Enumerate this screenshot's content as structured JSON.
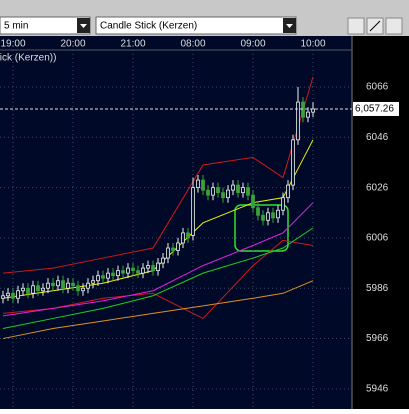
{
  "toolbar": {
    "interval": "5 min",
    "chart_style": "Candle Stick (Kerzen)"
  },
  "chart_data": {
    "type": "candlestick",
    "label": "tick (Kerzen))",
    "categories": [
      null,
      null,
      "19:00",
      null,
      null,
      null,
      null,
      null,
      null,
      null,
      null,
      null,
      null,
      null,
      "20:00",
      null,
      null,
      null,
      null,
      null,
      null,
      null,
      null,
      null,
      null,
      null,
      "21:00",
      null,
      null,
      null,
      null,
      null,
      null,
      null,
      null,
      null,
      null,
      null,
      "08:00",
      null,
      null,
      null,
      null,
      null,
      null,
      null,
      null,
      null,
      null,
      null,
      "09:00",
      null,
      null,
      null,
      null,
      null,
      null,
      null,
      null,
      null,
      null,
      null,
      "10:00"
    ],
    "open": [
      5982,
      5983,
      5984,
      5982,
      5985,
      5986,
      5984,
      5987,
      5985,
      5986,
      5988,
      5987,
      5989,
      5986,
      5988,
      5987,
      5985,
      5986,
      5988,
      5989,
      5991,
      5990,
      5992,
      5991,
      5993,
      5992,
      5994,
      5993,
      5992,
      5994,
      5995,
      5993,
      5996,
      5998,
      6002,
      6001,
      6004,
      6008,
      6007,
      6026,
      6029,
      6025,
      6023,
      6026,
      6024,
      6022,
      6025,
      6027,
      6024,
      6026,
      6023,
      6018,
      6015,
      6013,
      6016,
      6014,
      6017,
      6022,
      6027,
      6045,
      6060,
      6054,
      6056
    ],
    "high": [
      5985,
      5986,
      5986,
      5987,
      5988,
      5988,
      5989,
      5989,
      5988,
      5990,
      5990,
      5991,
      5991,
      5990,
      5990,
      5989,
      5988,
      5990,
      5991,
      5993,
      5993,
      5994,
      5994,
      5995,
      5995,
      5996,
      5996,
      5995,
      5996,
      5997,
      5997,
      5998,
      6000,
      6004,
      6004,
      6006,
      6010,
      6010,
      6030,
      6031,
      6031,
      6027,
      6028,
      6028,
      6026,
      6027,
      6029,
      6029,
      6028,
      6028,
      6025,
      6020,
      6017,
      6018,
      6018,
      6019,
      6024,
      6029,
      6047,
      6066,
      6062,
      6058,
      6060
    ],
    "low": [
      5980,
      5981,
      5980,
      5980,
      5983,
      5982,
      5982,
      5983,
      5983,
      5984,
      5985,
      5985,
      5984,
      5984,
      5985,
      5983,
      5983,
      5984,
      5986,
      5987,
      5988,
      5988,
      5989,
      5989,
      5990,
      5990,
      5991,
      5990,
      5990,
      5992,
      5991,
      5991,
      5994,
      5996,
      5999,
      5999,
      6002,
      6004,
      6005,
      6024,
      6023,
      6021,
      6021,
      6022,
      6020,
      6020,
      6023,
      6022,
      6022,
      6021,
      6016,
      6013,
      6011,
      6011,
      6012,
      6012,
      6015,
      6020,
      6025,
      6043,
      6052,
      6052,
      6054
    ],
    "close": [
      5983,
      5984,
      5982,
      5985,
      5986,
      5984,
      5987,
      5985,
      5986,
      5988,
      5987,
      5989,
      5986,
      5988,
      5987,
      5985,
      5986,
      5988,
      5989,
      5991,
      5990,
      5992,
      5991,
      5993,
      5992,
      5994,
      5993,
      5992,
      5994,
      5995,
      5993,
      5996,
      5998,
      6002,
      6001,
      6004,
      6008,
      6006,
      6026,
      6029,
      6025,
      6023,
      6026,
      6024,
      6022,
      6025,
      6027,
      6024,
      6026,
      6023,
      6018,
      6015,
      6013,
      6016,
      6014,
      6017,
      6022,
      6027,
      6045,
      6060,
      6054,
      6056,
      6057.26
    ],
    "up_color": "#e8f0e8",
    "down_color": "#3aa03a",
    "lines": [
      {
        "color": "#d01818",
        "x": [
          0,
          10,
          20,
          30,
          40,
          50,
          56,
          62
        ],
        "values": [
          5992,
          5994,
          5998,
          6002,
          6035,
          6038,
          6030,
          6070
        ]
      },
      {
        "color": "#d01818",
        "x": [
          0,
          10,
          20,
          30,
          40,
          50,
          56,
          62
        ],
        "values": [
          5976,
          5978,
          5982,
          5984,
          5974,
          5995,
          6005,
          6003
        ]
      },
      {
        "color": "#f0f000",
        "x": [
          0,
          10,
          20,
          30,
          40,
          50,
          56,
          62
        ],
        "values": [
          5982,
          5985,
          5988,
          5993,
          6012,
          6020,
          6022,
          6045
        ]
      },
      {
        "color": "#e020e0",
        "x": [
          0,
          10,
          20,
          30,
          40,
          50,
          56,
          62
        ],
        "values": [
          5975,
          5978,
          5981,
          5985,
          5995,
          6003,
          6008,
          6020
        ]
      },
      {
        "color": "#20d020",
        "x": [
          0,
          10,
          20,
          30,
          40,
          50,
          56,
          62
        ],
        "values": [
          5970,
          5974,
          5978,
          5983,
          5992,
          5998,
          6002,
          6010
        ]
      },
      {
        "color": "#e09020",
        "x": [
          0,
          10,
          20,
          30,
          40,
          50,
          56,
          62
        ],
        "values": [
          5966,
          5970,
          5973,
          5976,
          5979,
          5982,
          5984,
          5989
        ]
      }
    ],
    "ylim": [
      5938,
      6080.7
    ],
    "yticks": [
      5946,
      5966,
      5986,
      6006,
      6026,
      6046,
      6066
    ],
    "last_price": {
      "value": 6057.26,
      "label": "6,057.26"
    },
    "grid": true
  }
}
